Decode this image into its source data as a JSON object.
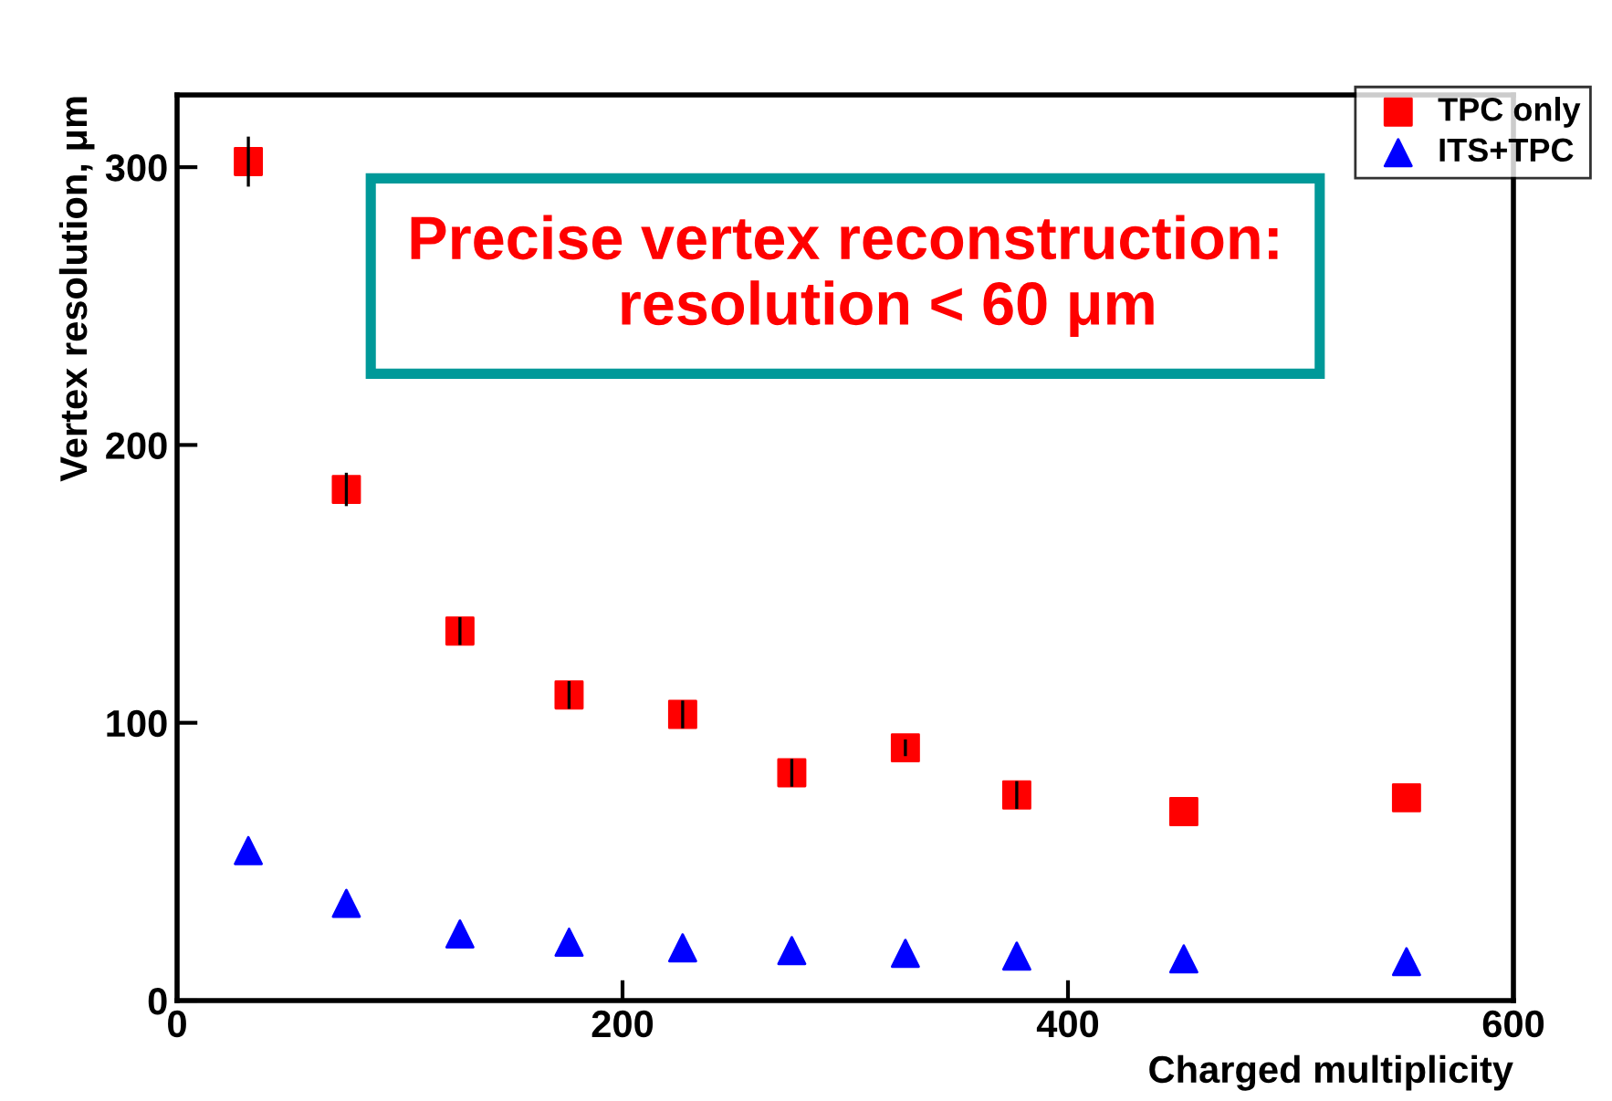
{
  "chart_data": {
    "type": "scatter",
    "xlabel": "Charged multiplicity",
    "ylabel": "Vertex resolution, μm",
    "xlim": [
      0,
      600
    ],
    "xticks": [
      0,
      200,
      400,
      600
    ],
    "ylim": [
      0,
      326
    ],
    "yticks": [
      0,
      100,
      200,
      300
    ],
    "grid": false,
    "legend": "top right",
    "series": [
      {
        "name": "TPC only",
        "color": "#ff0000",
        "marker": "square",
        "x": [
          32,
          76,
          127,
          176,
          227,
          276,
          327,
          377,
          452,
          552
        ],
        "values": [
          302,
          184,
          133,
          110,
          103,
          82,
          91,
          74,
          68,
          73
        ],
        "errors": [
          9,
          6,
          5,
          5,
          5,
          5,
          3,
          5,
          null,
          null
        ]
      },
      {
        "name": "ITS+TPC",
        "color": "#0000ff",
        "marker": "triangle",
        "x": [
          32,
          76,
          127,
          176,
          227,
          276,
          327,
          377,
          452,
          552
        ],
        "values": [
          54,
          35,
          24,
          21,
          19,
          18,
          17,
          16,
          15,
          14
        ]
      }
    ],
    "annotations": [
      "Precise vertex reconstruction:\n     resolution < 60 μm"
    ]
  }
}
